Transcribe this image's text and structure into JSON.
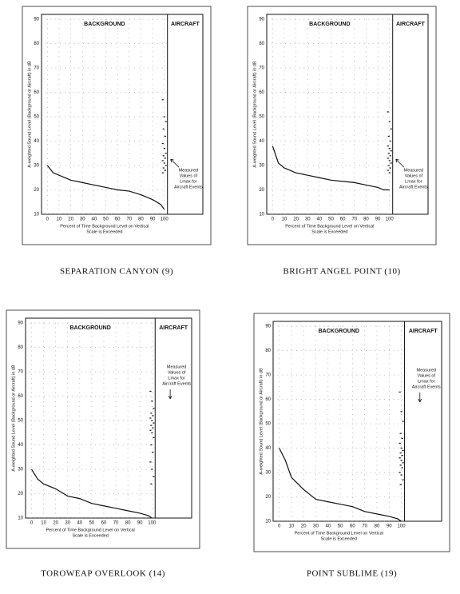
{
  "chart_data": [
    {
      "type": "line",
      "caption": "SEPARATION CANYON (9)",
      "ylabel": "A-weighted Sound Level (Background or Aircraft) in dB",
      "xlabel": [
        "Percent of Time Background Level on Vertical",
        "Scale is Exceeded"
      ],
      "annotation": [
        "Measured",
        "Values of",
        "Lmax for",
        "Aircraft Events"
      ],
      "xlim": [
        -5,
        133
      ],
      "ylim": [
        10,
        92
      ],
      "xticks": [
        0,
        10,
        20,
        30,
        40,
        50,
        60,
        70,
        80,
        90,
        100
      ],
      "yticks": [
        10,
        20,
        30,
        40,
        50,
        60,
        70,
        80,
        90
      ],
      "grid": true,
      "series": [
        {
          "name": "BACKGROUND",
          "color": "#111",
          "x": [
            0,
            5,
            10,
            20,
            30,
            40,
            50,
            60,
            70,
            80,
            90,
            97,
            100
          ],
          "values": [
            30,
            27,
            26,
            24,
            23,
            22,
            21,
            20,
            19.5,
            18,
            16,
            14,
            12
          ]
        },
        {
          "name": "AIRCRAFT",
          "color": "#111",
          "values": [
            57,
            50,
            48,
            45,
            42,
            39,
            37,
            35,
            34,
            33,
            32,
            31,
            30,
            29,
            28,
            27
          ]
        }
      ]
    },
    {
      "type": "line",
      "caption": "BRIGHT ANGEL POINT (10)",
      "ylabel": "A-weighted Sound Level (Background or Aircraft) in dB",
      "xlabel": [
        "Percent of Time Background Level on Vertical",
        "Scale is Exceeded"
      ],
      "annotation": [
        "Measured",
        "Values of",
        "Lmax for",
        "Aircraft Events"
      ],
      "xlim": [
        -5,
        133
      ],
      "ylim": [
        10,
        92
      ],
      "xticks": [
        0,
        10,
        20,
        30,
        40,
        50,
        60,
        70,
        80,
        90,
        100
      ],
      "yticks": [
        10,
        20,
        30,
        40,
        50,
        60,
        70,
        80,
        90
      ],
      "grid": true,
      "series": [
        {
          "name": "BACKGROUND",
          "color": "#111",
          "x": [
            0,
            5,
            10,
            20,
            30,
            40,
            50,
            60,
            70,
            80,
            90,
            95,
            100
          ],
          "values": [
            38,
            31,
            29,
            27,
            26,
            25,
            24,
            23.5,
            23,
            22,
            21,
            20,
            20
          ]
        },
        {
          "name": "AIRCRAFT",
          "color": "#111",
          "values": [
            52,
            48,
            45,
            42,
            40,
            38,
            37,
            36,
            35,
            34,
            33,
            32,
            31,
            30,
            29,
            28,
            27
          ]
        }
      ]
    },
    {
      "type": "line",
      "caption": "TOROWEAP OVERLOOK (14)",
      "ylabel": "A-weighted Sound Level (Background or Aircraft) in dB",
      "xlabel": [
        "Percent of Time Background Level on Vertical",
        "Scale is Exceeded"
      ],
      "annotation": [
        "Measured",
        "Values of",
        "Lmax for",
        "Aircraft Events"
      ],
      "xlim": [
        -5,
        133
      ],
      "ylim": [
        10,
        92
      ],
      "xticks": [
        0,
        10,
        20,
        30,
        40,
        50,
        60,
        70,
        80,
        90,
        100
      ],
      "yticks": [
        10,
        20,
        30,
        40,
        50,
        60,
        70,
        80,
        90
      ],
      "grid": true,
      "series": [
        {
          "name": "BACKGROUND",
          "color": "#111",
          "x": [
            0,
            5,
            10,
            20,
            30,
            40,
            50,
            60,
            70,
            80,
            90,
            97,
            100
          ],
          "values": [
            30,
            26,
            24,
            22,
            19,
            18,
            16,
            15,
            14,
            13,
            12,
            11,
            10
          ]
        },
        {
          "name": "AIRCRAFT",
          "color": "#111",
          "values": [
            62,
            58,
            55,
            53,
            52,
            51,
            50,
            49,
            48,
            47,
            46,
            45,
            43,
            40,
            37,
            33,
            30,
            27,
            24
          ]
        }
      ]
    },
    {
      "type": "line",
      "caption": "POINT SUBLIME (19)",
      "ylabel": "A-weighted Sound Level (Background or Aircraft) in dB",
      "xlabel": [
        "Percent of Time Background Level on Vertical",
        "Scale is Exceeded"
      ],
      "annotation": [
        "Measured",
        "Values of",
        "Lmax for",
        "Aircraft Events"
      ],
      "xlim": [
        -5,
        133
      ],
      "ylim": [
        10,
        92
      ],
      "xticks": [
        0,
        10,
        20,
        30,
        40,
        50,
        60,
        70,
        80,
        90,
        100
      ],
      "yticks": [
        10,
        20,
        30,
        40,
        50,
        60,
        70,
        80,
        90
      ],
      "grid": true,
      "series": [
        {
          "name": "BACKGROUND",
          "color": "#111",
          "x": [
            0,
            5,
            10,
            20,
            30,
            40,
            50,
            60,
            70,
            80,
            90,
            97,
            100
          ],
          "values": [
            40,
            35,
            28,
            23,
            19,
            18,
            17,
            16,
            14,
            13,
            12,
            11,
            10
          ]
        },
        {
          "name": "AIRCRAFT",
          "color": "#111",
          "values": [
            63,
            55,
            51,
            46,
            44,
            42,
            40,
            39,
            38,
            37,
            36,
            35,
            34,
            33,
            32,
            30,
            29,
            27,
            25
          ]
        }
      ]
    }
  ]
}
